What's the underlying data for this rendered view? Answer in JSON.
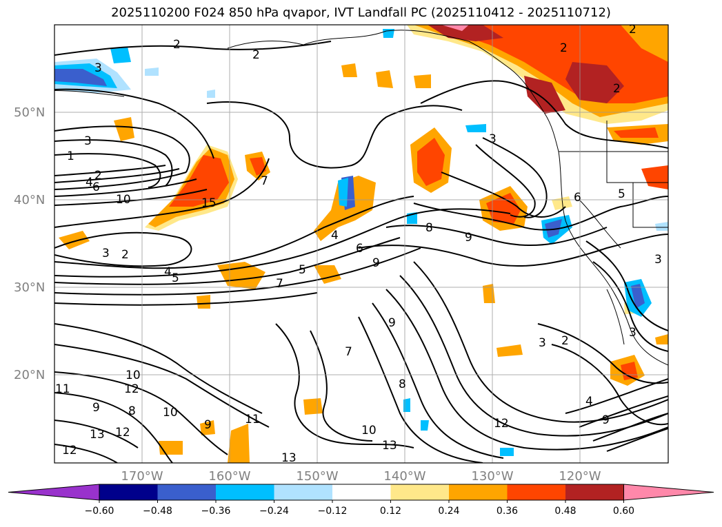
{
  "title": "2025110200 F024 850 hPa qvapor, IVT Landfall PC (2025110412 - 2025110712)",
  "lat_labels": [
    "50°N",
    "40°N",
    "30°N",
    "20°N"
  ],
  "lon_labels": [
    "170°W",
    "160°W",
    "150°W",
    "140°W",
    "130°W",
    "120°W"
  ],
  "colorbar": {
    "ticks": [
      "−0.60",
      "−0.48",
      "−0.36",
      "−0.24",
      "−0.12",
      "0.12",
      "0.24",
      "0.36",
      "0.48",
      "0.60"
    ],
    "colors": [
      "#9932cc",
      "#00008b",
      "#3a5fcd",
      "#00bfff",
      "#b0e2ff",
      "#ffffff",
      "#ffe88a",
      "#ffa500",
      "#ff4500",
      "#b22222",
      "#ff88aa"
    ]
  },
  "contour_labels": [
    "2",
    "2",
    "2",
    "3",
    "3",
    "2",
    "2",
    "4",
    "6",
    "3",
    "2",
    "4",
    "1",
    "10",
    "15",
    "3",
    "2",
    "7",
    "4",
    "5",
    "5",
    "7",
    "6",
    "9",
    "8",
    "9",
    "7",
    "9",
    "10",
    "12",
    "10",
    "11",
    "9",
    "8",
    "12",
    "13",
    "12",
    "11",
    "13",
    "10",
    "9",
    "8",
    "13",
    "12",
    "4",
    "3",
    "2",
    "9",
    "3",
    "6",
    "5",
    "3"
  ]
}
